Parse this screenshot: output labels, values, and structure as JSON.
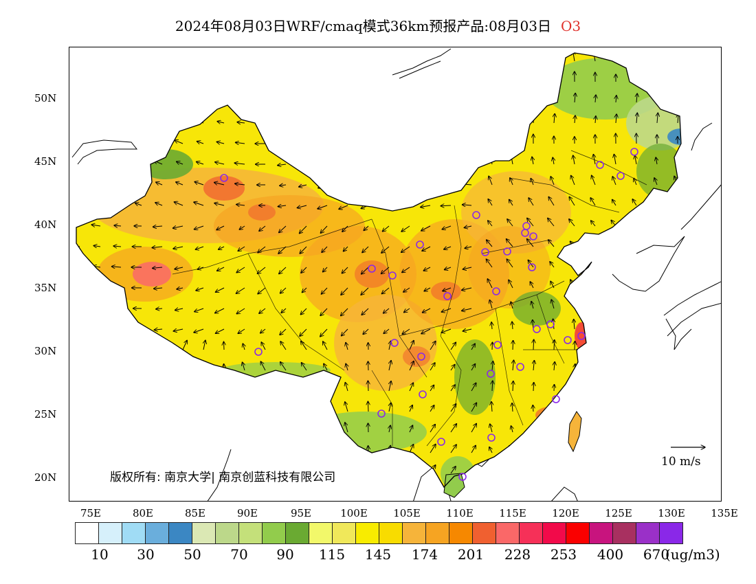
{
  "title": {
    "main": "2024年08月03日WRF/cmaq模式36km预报产品:08月03日",
    "species": "O3",
    "species_color": "#e0302a"
  },
  "axes": {
    "lat_labels": [
      "50N",
      "45N",
      "40N",
      "35N",
      "30N",
      "25N",
      "20N"
    ],
    "lon_labels": [
      "75E",
      "80E",
      "85E",
      "90E",
      "95E",
      "100E",
      "105E",
      "110E",
      "115E",
      "120E",
      "125E",
      "130E",
      "135E"
    ]
  },
  "legend": {
    "colors": [
      "#ffffff",
      "#d6f0fb",
      "#a0dcf5",
      "#6aaedc",
      "#3b87c3",
      "#dbe8b4",
      "#bcd88a",
      "#c4e07a",
      "#92cc4c",
      "#6aaa32",
      "#f2f86a",
      "#f0e85a",
      "#f8ec00",
      "#f8dc00",
      "#f6b43a",
      "#f6a422",
      "#f68800",
      "#f06030",
      "#fa6868",
      "#f63058",
      "#f20a4a",
      "#fa0000",
      "#c8147e",
      "#a83060",
      "#9a30c8",
      "#8a28e8"
    ],
    "labels": [
      "10",
      "30",
      "50",
      "70",
      "90",
      "115",
      "145",
      "174",
      "201",
      "228",
      "253",
      "400",
      "670"
    ],
    "unit": "(ug/m3)"
  },
  "copyright": "版权所有: 南京大学| 南京创蓝科技有限公司",
  "wind_reference": "10 m/s"
}
